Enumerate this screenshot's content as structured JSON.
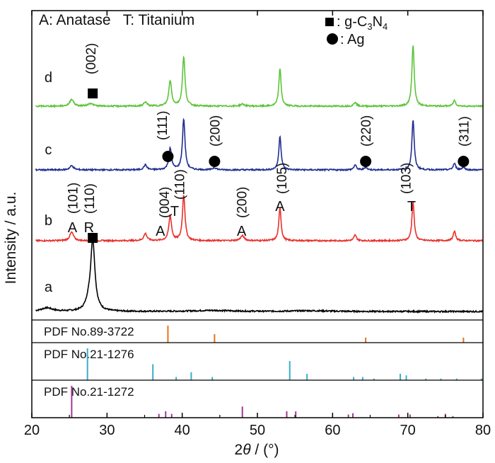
{
  "chart_data": {
    "type": "line",
    "xlabel_prefix": "2",
    "xlabel_theta": "θ",
    "xlabel_suffix": " / (°)",
    "ylabel": "Intensity / a.u.",
    "xlim": [
      20,
      80
    ],
    "xticks": [
      20,
      30,
      40,
      50,
      60,
      70,
      80
    ],
    "legend": {
      "phase_key": "A: Anatase   T: Titanium",
      "gcn_label": ": g-C",
      "gcn_sub1": "3",
      "gcn_mid": "N",
      "gcn_sub2": "4",
      "ag_label": ": Ag"
    },
    "series": [
      {
        "name": "a",
        "color": "#000000",
        "baseline": 0.0,
        "peaks": [
          [
            22.0,
            0.05,
            0.9
          ],
          [
            27.5,
            0.08,
            0.4
          ],
          [
            28.1,
            1.0,
            0.35
          ],
          [
            44.0,
            0.015,
            3
          ],
          [
            57.0,
            0.01,
            3
          ]
        ]
      },
      {
        "name": "b",
        "color": "#e8302a",
        "baseline": 1.0,
        "peaks": [
          [
            25.3,
            0.12,
            0.3
          ],
          [
            35.1,
            0.1,
            0.25
          ],
          [
            38.4,
            0.35,
            0.22
          ],
          [
            40.2,
            0.65,
            0.2
          ],
          [
            48.0,
            0.07,
            0.3
          ],
          [
            53.0,
            0.47,
            0.18
          ],
          [
            63.0,
            0.08,
            0.2
          ],
          [
            70.7,
            0.55,
            0.18
          ],
          [
            76.2,
            0.13,
            0.2
          ]
        ]
      },
      {
        "name": "c",
        "color": "#1f2d8f",
        "baseline": 2.0,
        "peaks": [
          [
            25.3,
            0.06,
            0.3
          ],
          [
            35.1,
            0.07,
            0.25
          ],
          [
            38.4,
            0.3,
            0.22
          ],
          [
            40.2,
            0.72,
            0.2
          ],
          [
            44.3,
            0.03,
            0.3
          ],
          [
            53.0,
            0.48,
            0.18
          ],
          [
            63.0,
            0.07,
            0.2
          ],
          [
            64.4,
            0.04,
            0.2
          ],
          [
            70.7,
            0.71,
            0.18
          ],
          [
            76.2,
            0.09,
            0.2
          ],
          [
            77.4,
            0.04,
            0.2
          ]
        ]
      },
      {
        "name": "d",
        "color": "#5cc43a",
        "baseline": 2.9,
        "peaks": [
          [
            25.3,
            0.1,
            0.3
          ],
          [
            27.8,
            0.04,
            0.4
          ],
          [
            35.1,
            0.06,
            0.25
          ],
          [
            38.4,
            0.36,
            0.22
          ],
          [
            40.2,
            0.7,
            0.2
          ],
          [
            48.0,
            0.03,
            0.3
          ],
          [
            53.0,
            0.53,
            0.18
          ],
          [
            63.0,
            0.06,
            0.2
          ],
          [
            70.7,
            0.87,
            0.18
          ],
          [
            76.2,
            0.08,
            0.2
          ]
        ]
      }
    ],
    "peak_labels": [
      {
        "text": "(002)",
        "x": 27.8,
        "y": 3.35,
        "rotate": true
      },
      {
        "text": "(111)",
        "x": 37.3,
        "y": 2.42,
        "rotate": true
      },
      {
        "text": "(200)",
        "x": 44.3,
        "y": 2.33,
        "rotate": true
      },
      {
        "text": "(220)",
        "x": 64.4,
        "y": 2.33,
        "rotate": true
      },
      {
        "text": "(311)",
        "x": 77.4,
        "y": 2.33,
        "rotate": true
      },
      {
        "text": "(101)",
        "x": 25.4,
        "y": 1.38,
        "rotate": true
      },
      {
        "text": "(110)",
        "x": 27.6,
        "y": 1.38,
        "rotate": true
      },
      {
        "text": "(004)",
        "x": 37.6,
        "y": 1.32,
        "rotate": true
      },
      {
        "text": "(110)",
        "x": 39.6,
        "y": 1.58,
        "rotate": true
      },
      {
        "text": "(200)",
        "x": 47.9,
        "y": 1.32,
        "rotate": true
      },
      {
        "text": "(105)",
        "x": 53.2,
        "y": 1.66,
        "rotate": true
      },
      {
        "text": "(103)",
        "x": 69.7,
        "y": 1.66,
        "rotate": true
      },
      {
        "text": "A",
        "x": 25.4,
        "y": 1.12,
        "rotate": false
      },
      {
        "text": "R",
        "x": 27.6,
        "y": 1.12,
        "rotate": false
      },
      {
        "text": "A",
        "x": 37.1,
        "y": 1.07,
        "rotate": false
      },
      {
        "text": "T",
        "x": 39.0,
        "y": 1.35,
        "rotate": false
      },
      {
        "text": "A",
        "x": 47.9,
        "y": 1.07,
        "rotate": false
      },
      {
        "text": "A",
        "x": 53.0,
        "y": 1.42,
        "rotate": false
      },
      {
        "text": "T",
        "x": 70.5,
        "y": 1.42,
        "rotate": false
      },
      {
        "text": "a",
        "x": 22.2,
        "y": 0.28,
        "rotate": false
      },
      {
        "text": "b",
        "x": 22.2,
        "y": 1.22,
        "rotate": false
      },
      {
        "text": "c",
        "x": 22.2,
        "y": 2.22,
        "rotate": false
      },
      {
        "text": "d",
        "x": 22.2,
        "y": 3.24,
        "rotate": false
      }
    ],
    "markers": [
      {
        "shape": "square",
        "x": 28.1,
        "y": 1.04
      },
      {
        "shape": "square",
        "x": 28.1,
        "y": 3.08
      },
      {
        "shape": "circle",
        "x": 38.1,
        "y": 2.19
      },
      {
        "shape": "circle",
        "x": 44.3,
        "y": 2.12
      },
      {
        "shape": "circle",
        "x": 64.4,
        "y": 2.12
      },
      {
        "shape": "circle",
        "x": 77.4,
        "y": 2.12
      }
    ],
    "reference_panels": [
      {
        "label": "PDF No.89-3722",
        "color": "#e8711a",
        "lines": [
          [
            38.1,
            1.0
          ],
          [
            44.3,
            0.5
          ],
          [
            64.4,
            0.3
          ],
          [
            77.4,
            0.3
          ]
        ]
      },
      {
        "label": "PDF No.21-1276",
        "color": "#3aaec8",
        "lines": [
          [
            27.4,
            1.0
          ],
          [
            36.1,
            0.5
          ],
          [
            39.2,
            0.1
          ],
          [
            41.2,
            0.25
          ],
          [
            44.0,
            0.1
          ],
          [
            54.3,
            0.6
          ],
          [
            56.6,
            0.2
          ],
          [
            62.8,
            0.1
          ],
          [
            64.0,
            0.1
          ],
          [
            65.5,
            0.05
          ],
          [
            69.0,
            0.2
          ],
          [
            69.8,
            0.15
          ],
          [
            72.4,
            0.05
          ],
          [
            74.4,
            0.05
          ],
          [
            76.5,
            0.05
          ],
          [
            79.8,
            0.05
          ]
        ]
      },
      {
        "label": "PDF No.21-1272",
        "color": "#a03a94",
        "lines": [
          [
            25.3,
            1.0
          ],
          [
            36.9,
            0.12
          ],
          [
            37.8,
            0.2
          ],
          [
            38.6,
            0.12
          ],
          [
            48.0,
            0.35
          ],
          [
            53.9,
            0.2
          ],
          [
            55.1,
            0.2
          ],
          [
            62.1,
            0.1
          ],
          [
            62.7,
            0.14
          ],
          [
            68.8,
            0.1
          ],
          [
            70.3,
            0.1
          ],
          [
            74.0,
            0.05
          ],
          [
            75.0,
            0.12
          ],
          [
            76.0,
            0.05
          ]
        ]
      }
    ]
  }
}
